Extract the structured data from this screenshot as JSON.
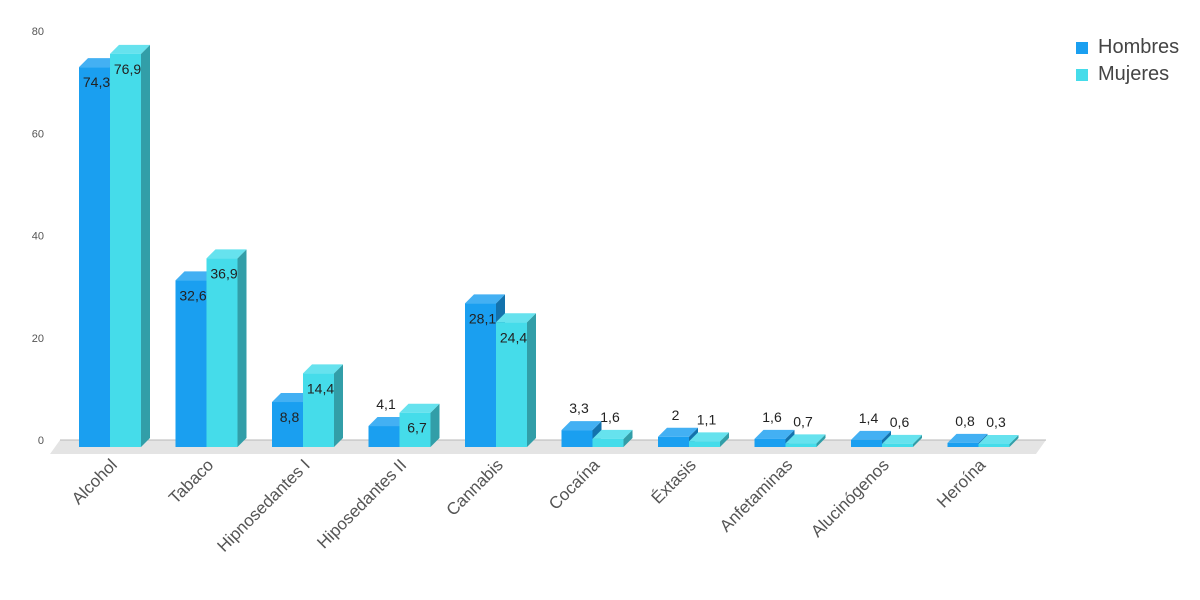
{
  "chart_data": {
    "type": "bar",
    "title": "",
    "xlabel": "",
    "ylabel": "",
    "categories": [
      "Alcohol",
      "Tabaco",
      "Hipnosedantes I",
      "Hiposedantes II",
      "Cannabis",
      "Cocaína",
      "Éxtasis",
      "Anfetaminas",
      "Alucinógenos",
      "Heroína"
    ],
    "series": [
      {
        "name": "Hombres",
        "values": [
          74.3,
          32.6,
          8.8,
          4.1,
          28.1,
          3.3,
          2,
          1.6,
          1.4,
          0.8
        ],
        "labels": [
          "74,3",
          "32,6",
          "8,8",
          "4,1",
          "28,1",
          "3,3",
          "2",
          "1,6",
          "1,4",
          "0,8"
        ],
        "color": "#1a9ff0"
      },
      {
        "name": "Mujeres",
        "values": [
          76.9,
          36.9,
          14.4,
          6.7,
          24.4,
          1.6,
          1.1,
          0.7,
          0.6,
          0.3
        ],
        "labels": [
          "76,9",
          "36,9",
          "14,4",
          "6,7",
          "24,4",
          "1,6",
          "1,1",
          "0,7",
          "0,6",
          "0,3"
        ],
        "color": "#45dcea"
      }
    ],
    "ylim": [
      0,
      80
    ],
    "yticks": [
      "0",
      "20",
      "40",
      "60",
      "80"
    ],
    "grid": false,
    "legend_position": "top-right",
    "style": "3d-bar"
  }
}
